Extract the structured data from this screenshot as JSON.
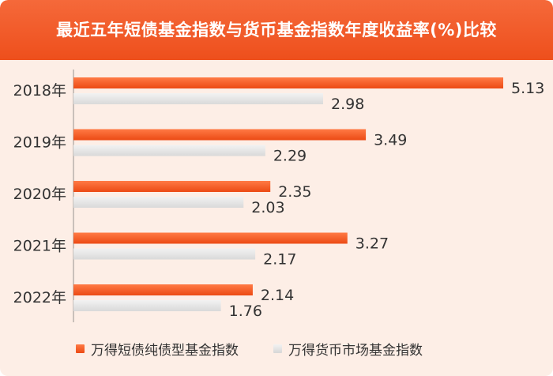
{
  "title": "最近五年短债基金指数与货币基金指数年度收益率(%)比较",
  "chart_data": {
    "type": "bar",
    "orientation": "horizontal",
    "categories": [
      "2018年",
      "2019年",
      "2020年",
      "2021年",
      "2022年"
    ],
    "series": [
      {
        "name": "万得短债纯债型基金指数",
        "color": "#f25a24",
        "values": [
          5.13,
          3.49,
          2.35,
          3.27,
          2.14
        ]
      },
      {
        "name": "万得货币市场基金指数",
        "color": "#e3e3e3",
        "values": [
          2.98,
          2.29,
          2.03,
          2.17,
          1.76
        ]
      }
    ],
    "xlim": [
      0,
      5.13
    ],
    "grid": false,
    "legend_position": "bottom"
  }
}
